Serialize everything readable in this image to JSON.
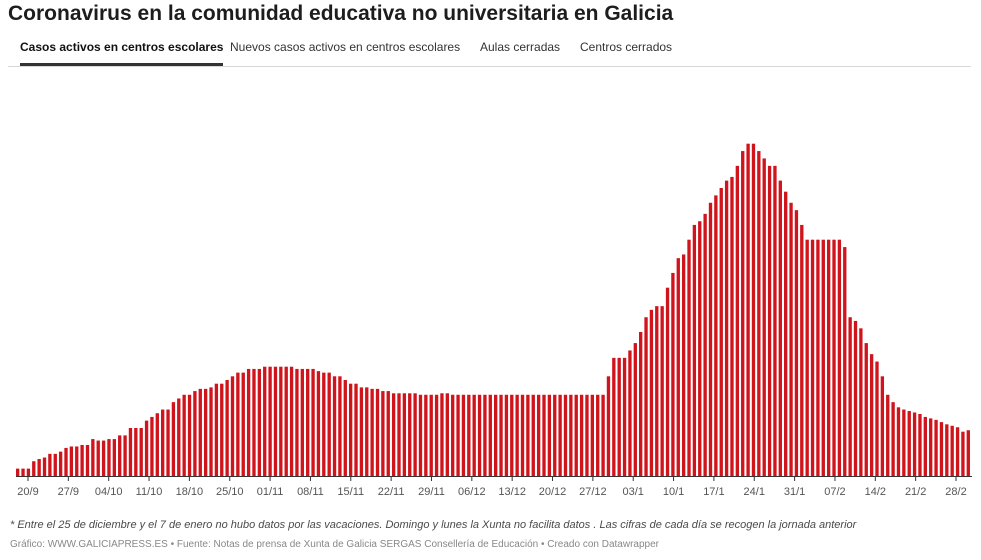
{
  "header": {
    "title": "Coronavirus en la comunidad educativa no universitaria en Galicia"
  },
  "tabs": [
    {
      "label": "Casos activos en centros escolares",
      "active": true
    },
    {
      "label": "Nuevos casos activos en centros escolares",
      "active": false
    },
    {
      "label": "Aulas cerradas",
      "active": false
    },
    {
      "label": "Centros cerrados",
      "active": false
    }
  ],
  "colors": {
    "bar": "#d0141c",
    "axis": "#333333",
    "tab_active_underline": "#333333"
  },
  "chart_data": {
    "type": "bar",
    "title": "Casos activos en centros escolares",
    "xlabel": "",
    "ylabel": "",
    "grid": false,
    "ylim": [
      0,
      520
    ],
    "tick_labels": [
      "20/9",
      "27/9",
      "04/10",
      "11/10",
      "18/10",
      "25/10",
      "01/11",
      "08/11",
      "15/11",
      "22/11",
      "29/11",
      "06/12",
      "13/12",
      "20/12",
      "27/12",
      "03/1",
      "10/1",
      "17/1",
      "24/1",
      "31/1",
      "07/2",
      "14/2",
      "21/2",
      "28/2"
    ],
    "values": [
      10,
      10,
      10,
      20,
      23,
      25,
      30,
      30,
      33,
      38,
      40,
      40,
      42,
      42,
      50,
      48,
      48,
      50,
      50,
      55,
      55,
      65,
      65,
      65,
      75,
      80,
      85,
      90,
      90,
      100,
      105,
      110,
      110,
      115,
      118,
      118,
      120,
      125,
      125,
      130,
      135,
      140,
      140,
      145,
      145,
      145,
      148,
      148,
      148,
      148,
      148,
      148,
      145,
      145,
      145,
      145,
      142,
      140,
      140,
      135,
      135,
      130,
      125,
      125,
      120,
      120,
      118,
      118,
      115,
      115,
      112,
      112,
      112,
      112,
      112,
      110,
      110,
      110,
      110,
      112,
      112,
      110,
      110,
      110,
      110,
      110,
      110,
      110,
      110,
      110,
      110,
      110,
      110,
      110,
      110,
      110,
      110,
      110,
      110,
      110,
      110,
      110,
      110,
      110,
      110,
      110,
      110,
      110,
      110,
      110,
      135,
      160,
      160,
      160,
      170,
      180,
      195,
      215,
      225,
      230,
      230,
      255,
      275,
      295,
      300,
      320,
      340,
      345,
      355,
      370,
      380,
      390,
      400,
      405,
      420,
      440,
      450,
      450,
      440,
      430,
      420,
      420,
      400,
      385,
      370,
      360,
      340,
      320,
      320,
      320,
      320,
      320,
      320,
      320,
      310,
      215,
      210,
      200,
      180,
      165,
      155,
      135,
      110,
      100,
      93,
      90,
      88,
      86,
      84,
      80,
      78,
      76,
      73,
      70,
      68,
      66,
      60,
      62
    ],
    "notes": [
      "Entre el 25 de diciembre y el 7 de enero no hubo datos por las vacaciones",
      "Domingo y lunes la Xunta no facilita datos",
      "Las cifras de cada día se recogen la jornada anterior"
    ]
  },
  "note_text": "* Entre el 25 de diciembre y el 7 de enero no hubo datos por las vacaciones. Domingo y lunes la Xunta no facilita datos . Las cifras de cada día se recogen la jornada anterior",
  "footer": {
    "credit": "Gráfico: WWW.GALICIAPRESS.ES • Fuente: Notas de prensa de Xunta de Galicia SERGAS Consellería de Educación • Creado con Datawrapper"
  }
}
